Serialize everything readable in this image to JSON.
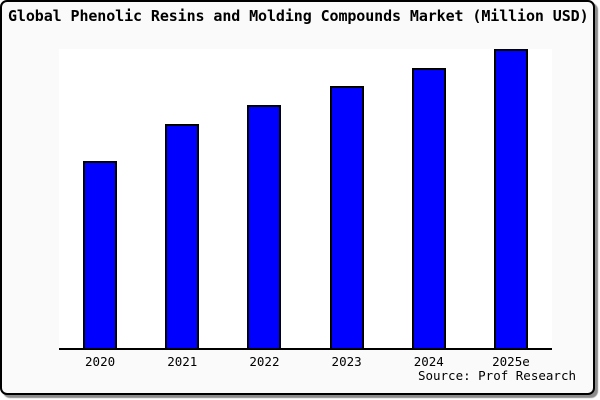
{
  "chart_data": {
    "type": "bar",
    "title": "Global Phenolic Resins and Molding Compounds Market (Million USD)",
    "categories": [
      "2020",
      "2021",
      "2022",
      "2023",
      "2024",
      "2025e"
    ],
    "values": [
      62.7,
      75.0,
      81.3,
      87.7,
      93.7,
      100.0
    ],
    "value_unit": "percent of tallest bar (y-axis unlabeled in chart)",
    "xlabel": "",
    "ylabel": "",
    "ylim": [
      0,
      100
    ],
    "grid": false,
    "legend": false,
    "bar_color": "#0000fe",
    "bar_border_color": "#000000",
    "source_note": "Source: Prof Research"
  },
  "colors": {
    "canvas_background": "#fafafa",
    "plot_background": "#ffffff",
    "frame_border": "#000000",
    "text": "#000000"
  }
}
